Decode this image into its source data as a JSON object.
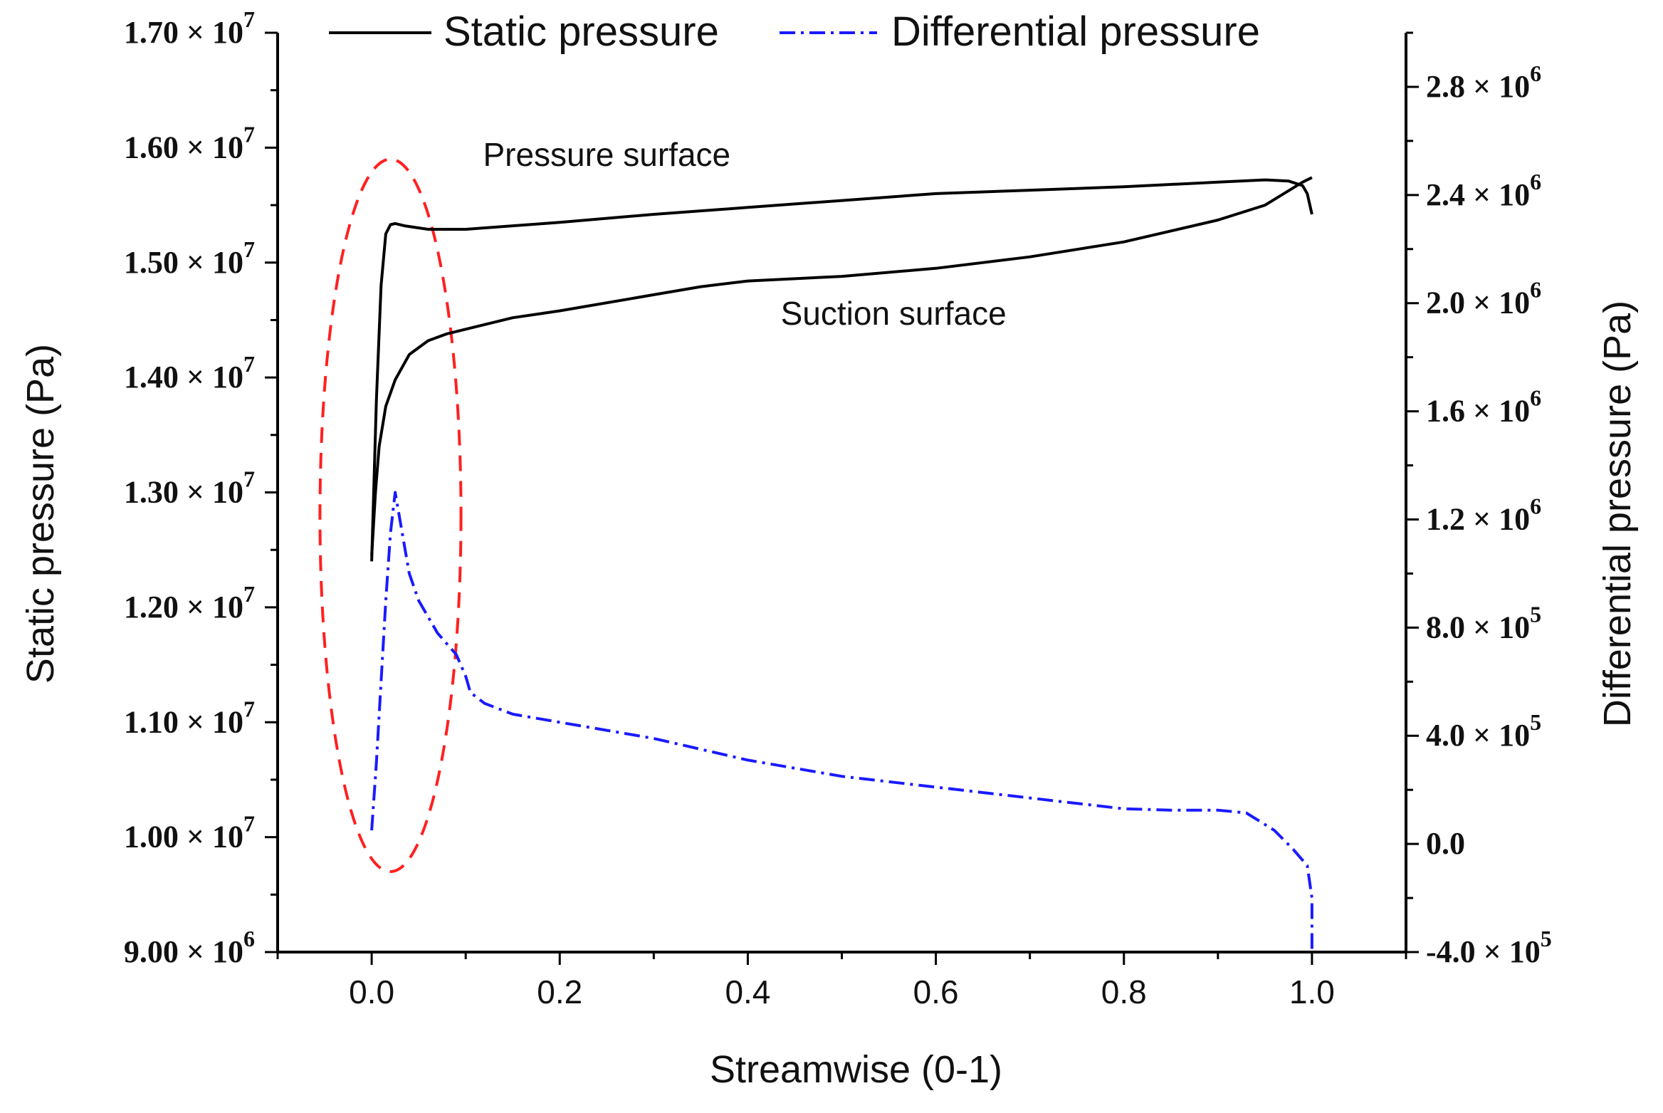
{
  "chart_data": {
    "type": "line",
    "title": "",
    "xlabel": "Streamwise (0-1)",
    "ylabel_left": "Static pressure (Pa)",
    "ylabel_right": "Differential pressure (Pa)",
    "xlim": [
      -0.1,
      1.1
    ],
    "ylim_left": [
      9000000,
      17000000
    ],
    "ylim_right": [
      -400000,
      3000000
    ],
    "x_ticks": [
      "0.0",
      "0.2",
      "0.4",
      "0.6",
      "0.8",
      "1.0"
    ],
    "x_tick_values": [
      0.0,
      0.2,
      0.4,
      0.6,
      0.8,
      1.0
    ],
    "y_left_ticks": [
      {
        "value": 17000000,
        "mantissa": "1.70",
        "exp": "7"
      },
      {
        "value": 16000000,
        "mantissa": "1.60",
        "exp": "7"
      },
      {
        "value": 15000000,
        "mantissa": "1.50",
        "exp": "7"
      },
      {
        "value": 14000000,
        "mantissa": "1.40",
        "exp": "7"
      },
      {
        "value": 13000000,
        "mantissa": "1.30",
        "exp": "7"
      },
      {
        "value": 12000000,
        "mantissa": "1.20",
        "exp": "7"
      },
      {
        "value": 11000000,
        "mantissa": "1.10",
        "exp": "7"
      },
      {
        "value": 10000000,
        "mantissa": "1.00",
        "exp": "7"
      },
      {
        "value": 9000000,
        "mantissa": "9.00",
        "exp": "6"
      }
    ],
    "y_right_ticks": [
      {
        "value": 2800000,
        "mantissa": "2.8",
        "exp": "6"
      },
      {
        "value": 2400000,
        "mantissa": "2.4",
        "exp": "6"
      },
      {
        "value": 2000000,
        "mantissa": "2.0",
        "exp": "6"
      },
      {
        "value": 1600000,
        "mantissa": "1.6",
        "exp": "6"
      },
      {
        "value": 1200000,
        "mantissa": "1.2",
        "exp": "6"
      },
      {
        "value": 800000,
        "mantissa": "8.0",
        "exp": "5"
      },
      {
        "value": 400000,
        "mantissa": "4.0",
        "exp": "5"
      },
      {
        "value": 0,
        "mantissa": "0.0",
        "exp": ""
      },
      {
        "value": -400000,
        "mantissa": "-4.0",
        "exp": "5"
      }
    ],
    "legend": [
      {
        "name": "Static pressure",
        "color": "#000000",
        "style": "solid"
      },
      {
        "name": "Differential pressure",
        "color": "#1a1aff",
        "style": "dashdot"
      }
    ],
    "annotations": [
      {
        "text": "Pressure surface",
        "x": 0.25,
        "y": 15840000,
        "axis": "left"
      },
      {
        "text": "Suction surface",
        "x": 0.555,
        "y": 14460000,
        "axis": "left"
      }
    ],
    "highlight_ellipse": {
      "color": "#ff2020",
      "cx": 0.02,
      "cy": 12800000,
      "rx": 0.075,
      "ry": 3100000,
      "axis": "left"
    },
    "series": [
      {
        "name": "Pressure surface (static)",
        "axis": "left",
        "color": "#000000",
        "x": [
          0.0,
          0.005,
          0.01,
          0.015,
          0.02,
          0.025,
          0.035,
          0.06,
          0.1,
          0.15,
          0.2,
          0.3,
          0.4,
          0.5,
          0.6,
          0.7,
          0.8,
          0.9,
          0.95,
          0.975,
          0.99,
          0.995,
          1.0
        ],
        "y": [
          12400000,
          13800000,
          14800000,
          15250000,
          15330000,
          15340000,
          15320000,
          15290000,
          15290000,
          15320000,
          15350000,
          15420000,
          15480000,
          15540000,
          15600000,
          15630000,
          15660000,
          15700000,
          15720000,
          15710000,
          15670000,
          15600000,
          15420000
        ]
      },
      {
        "name": "Suction surface (static)",
        "axis": "left",
        "color": "#000000",
        "x": [
          0.0,
          0.004,
          0.008,
          0.015,
          0.025,
          0.04,
          0.06,
          0.08,
          0.1,
          0.15,
          0.2,
          0.3,
          0.35,
          0.4,
          0.5,
          0.6,
          0.7,
          0.8,
          0.9,
          0.95,
          0.99,
          1.0
        ],
        "y": [
          12450000,
          13000000,
          13400000,
          13750000,
          13980000,
          14200000,
          14320000,
          14380000,
          14420000,
          14520000,
          14580000,
          14720000,
          14790000,
          14840000,
          14880000,
          14950000,
          15050000,
          15180000,
          15370000,
          15500000,
          15700000,
          15740000
        ]
      },
      {
        "name": "Differential pressure",
        "axis": "right",
        "color": "#1a1aff",
        "x": [
          0.0,
          0.005,
          0.01,
          0.015,
          0.02,
          0.025,
          0.03,
          0.04,
          0.05,
          0.07,
          0.09,
          0.1,
          0.105,
          0.12,
          0.15,
          0.2,
          0.25,
          0.3,
          0.35,
          0.4,
          0.5,
          0.6,
          0.7,
          0.8,
          0.85,
          0.9,
          0.93,
          0.96,
          0.98,
          0.995,
          1.0,
          1.0
        ],
        "y": [
          50000,
          300000,
          600000,
          900000,
          1150000,
          1300000,
          1200000,
          1000000,
          900000,
          780000,
          700000,
          620000,
          560000,
          520000,
          480000,
          450000,
          420000,
          390000,
          350000,
          310000,
          250000,
          210000,
          170000,
          130000,
          125000,
          125000,
          115000,
          50000,
          -20000,
          -80000,
          -200000,
          -400000
        ]
      }
    ]
  }
}
